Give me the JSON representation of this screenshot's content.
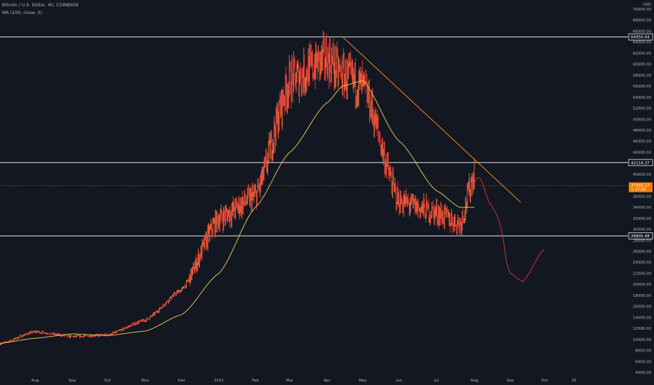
{
  "symbol_title": "Bitcoin / U.S. Dollar, 4h, COINBASE",
  "indicator_label": "MA (200, close, 0)",
  "currency": "USD",
  "colors": {
    "background": "#131722",
    "candle": "#ff6d3a",
    "candle_alt": "#e53935",
    "ma_line": "#e2c24a",
    "trendline": "#f0872a",
    "projection": "#d32f2f",
    "horizontal_lines": "#e8e8e8",
    "current_price_line": "#f57c00",
    "axis_text": "#b2b5be"
  },
  "price_tags": {
    "current_price": "37945.27",
    "countdown": "1:17:56"
  },
  "chart_data": {
    "type": "line",
    "x": [
      "Jul",
      "Aug",
      "Sep",
      "Oct",
      "Nov",
      "Dec",
      "2021",
      "Feb",
      "Mar",
      "Apr",
      "Apr*",
      "May",
      "Jun",
      "Jul",
      "Jul*",
      "Aug",
      "Aug*",
      "Sep",
      "Sep*",
      "Oct"
    ],
    "series": [
      {
        "name": "Bitcoin / U.S. Dollar",
        "values": [
          9200,
          11400,
          10500,
          10800,
          13500,
          19000,
          32000,
          36000,
          57000,
          61000,
          58000,
          56000,
          35000,
          33000,
          31000,
          40000,
          null,
          null,
          null,
          null
        ]
      },
      {
        "name": "MA (200, close, 0)",
        "values": [
          9300,
          10200,
          11000,
          10700,
          11500,
          14500,
          22000,
          34000,
          44000,
          53000,
          56000,
          57000,
          46000,
          37000,
          34000,
          34000,
          null,
          null,
          null,
          null
        ]
      },
      {
        "name": "projection",
        "values": [
          null,
          null,
          null,
          null,
          null,
          null,
          null,
          null,
          null,
          null,
          null,
          null,
          null,
          null,
          null,
          38500,
          36000,
          22000,
          20500,
          26500
        ]
      }
    ],
    "x_tick_labels": [
      "Aug",
      "Sep",
      "Oct",
      "Nov",
      "Dec",
      "2021",
      "Feb",
      "Mar",
      "Apr",
      "May",
      "Jun",
      "Jul",
      "Aug",
      "Sep",
      "Oct",
      "25"
    ],
    "y_tick_labels": [
      "70000.00",
      "68000.00",
      "66000.00",
      "64000.00",
      "62000.00",
      "60000.00",
      "58000.00",
      "56000.00",
      "54000.00",
      "52000.00",
      "50000.00",
      "48000.00",
      "46000.00",
      "44000.00",
      "42000.00",
      "40000.00",
      "38000.00",
      "36000.00",
      "34000.00",
      "32000.00",
      "30000.00",
      "28000.00",
      "26000.00",
      "24000.00",
      "22000.00",
      "20000.00",
      "18000.00",
      "16000.00",
      "14000.00",
      "12000.00",
      "10000.00",
      "8000.00",
      "6000.00",
      "4000.00"
    ],
    "ylim": [
      4000,
      71000
    ],
    "horizontal_levels": [
      {
        "label": "64950.44",
        "value": 64950.44
      },
      {
        "label": "42116.37",
        "value": 42116.37
      },
      {
        "label": "28805.48",
        "value": 28805.48
      }
    ],
    "current_price": 37945.27,
    "trendline": {
      "from": {
        "date": "Apr",
        "value": 65000
      },
      "to": {
        "date": "Aug",
        "value": 34900
      }
    },
    "grid": false,
    "legend_placement": "top-left"
  }
}
